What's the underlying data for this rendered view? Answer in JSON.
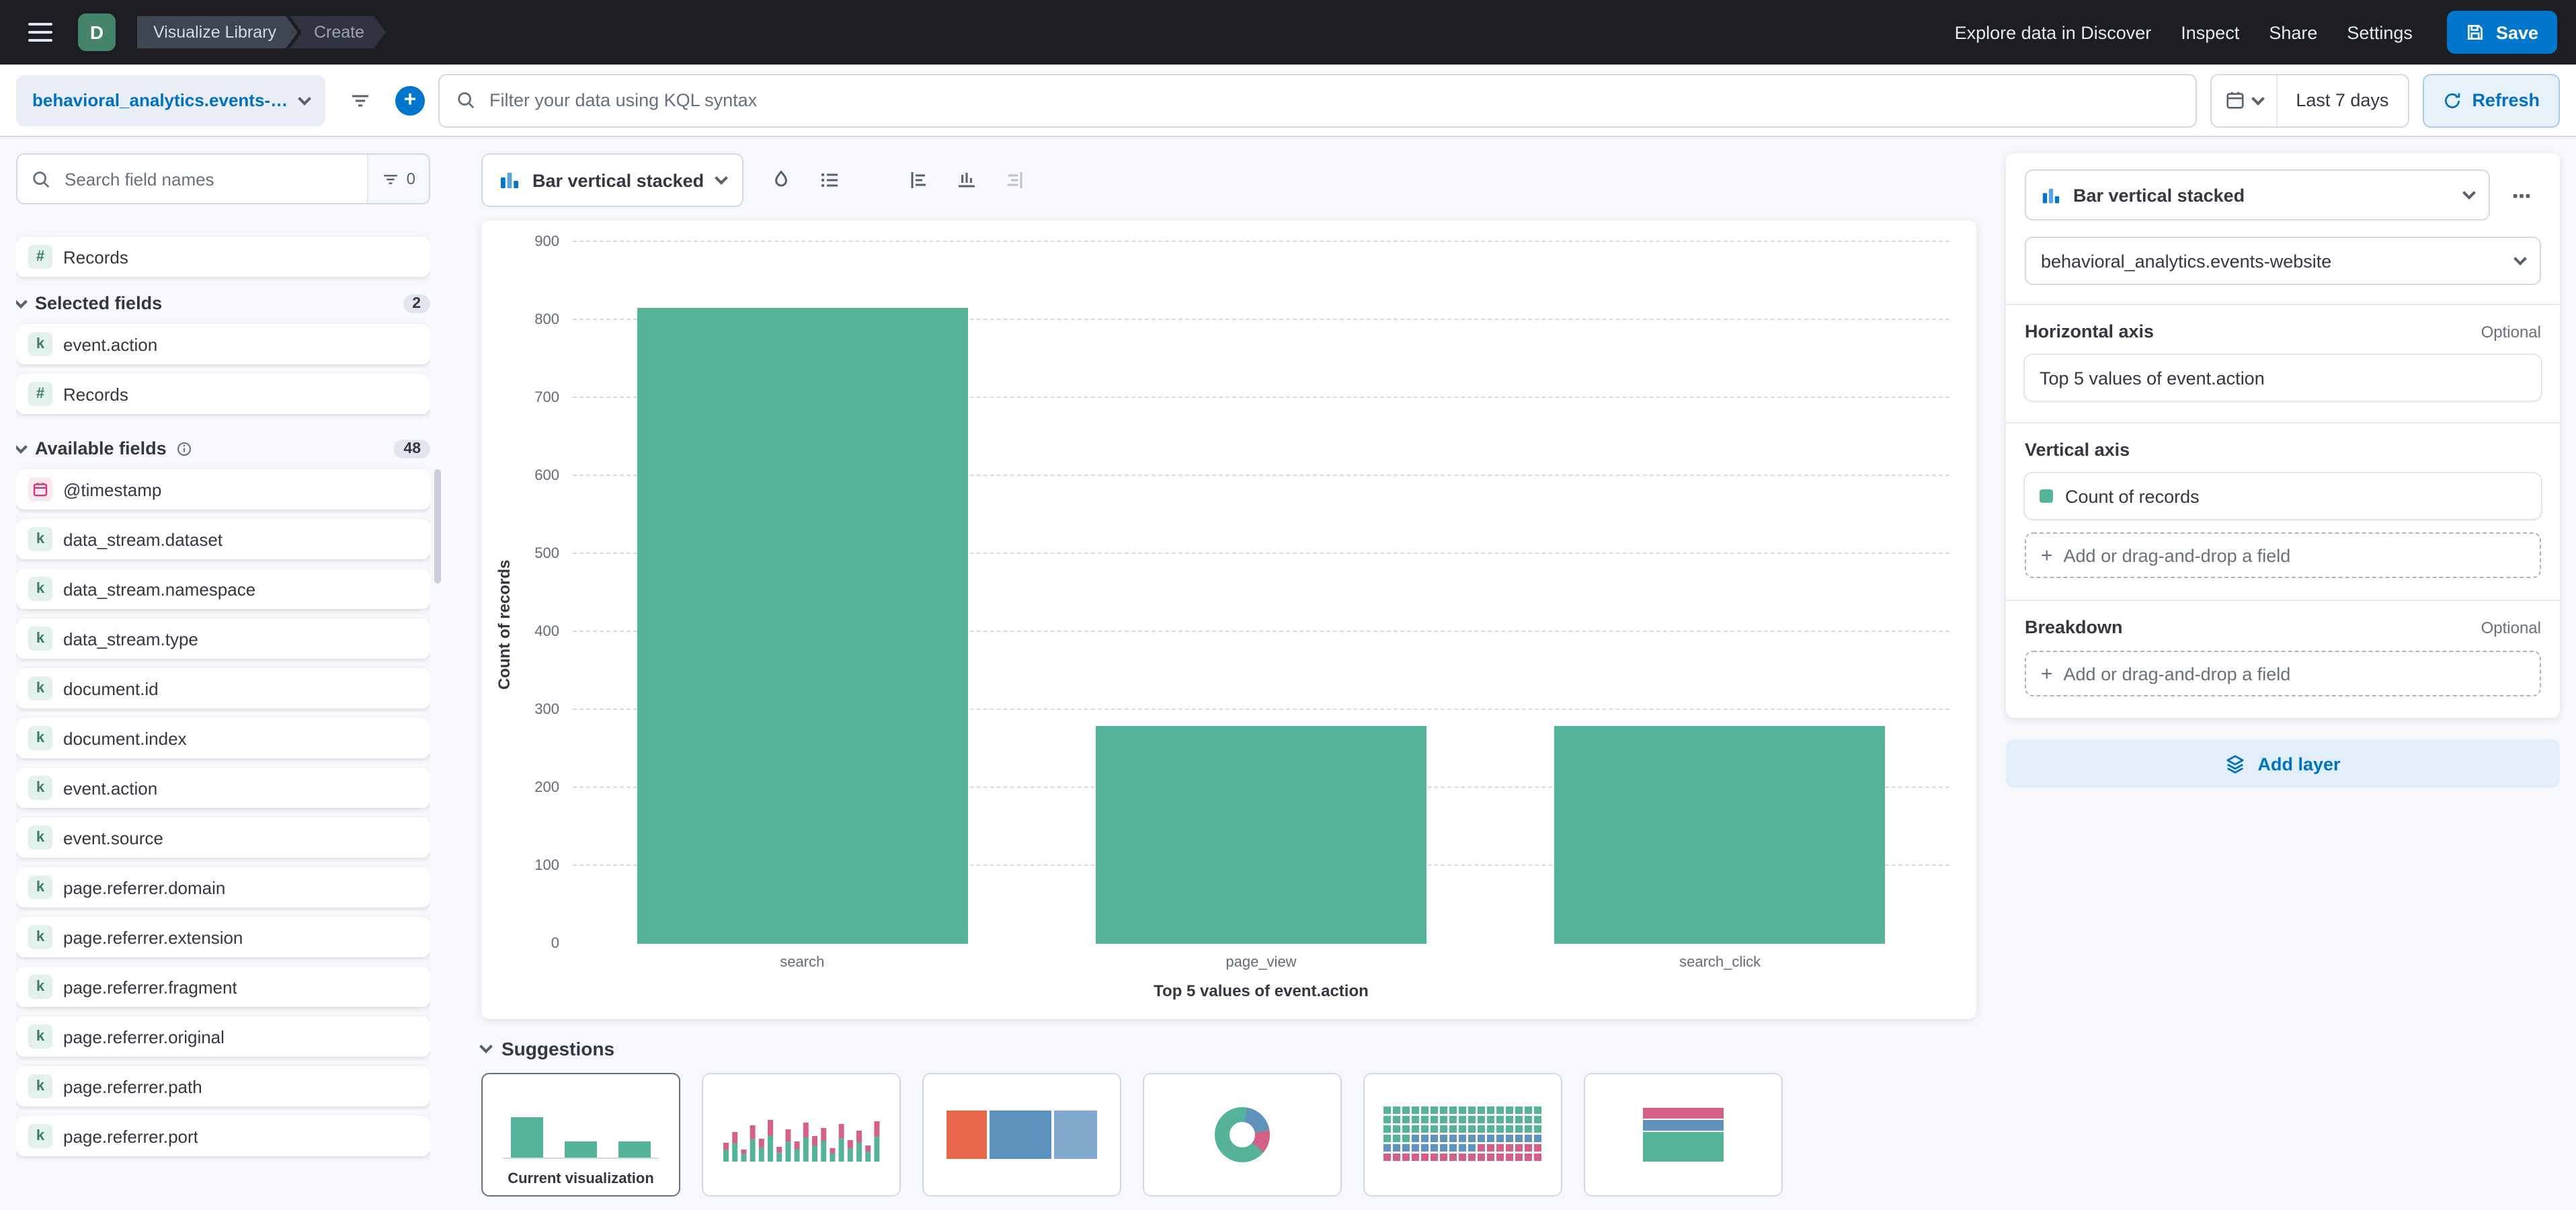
{
  "header": {
    "space_initial": "D",
    "breadcrumbs": [
      "Visualize Library",
      "Create"
    ],
    "nav": [
      "Explore data in Discover",
      "Inspect",
      "Share",
      "Settings"
    ],
    "save_label": "Save"
  },
  "query_bar": {
    "data_view": "behavioral_analytics.events-web...",
    "kql_placeholder": "Filter your data using KQL syntax",
    "time_range": "Last 7 days",
    "refresh_label": "Refresh"
  },
  "sidebar": {
    "search_placeholder": "Search field names",
    "filter_count": "0",
    "records_field": "Records",
    "selected": {
      "label": "Selected fields",
      "count": "2",
      "items": [
        {
          "type": "keyword",
          "name": "event.action"
        },
        {
          "type": "number",
          "name": "Records"
        }
      ]
    },
    "available": {
      "label": "Available fields",
      "count": "48",
      "items": [
        {
          "type": "date",
          "name": "@timestamp"
        },
        {
          "type": "keyword",
          "name": "data_stream.dataset"
        },
        {
          "type": "keyword",
          "name": "data_stream.namespace"
        },
        {
          "type": "keyword",
          "name": "data_stream.type"
        },
        {
          "type": "keyword",
          "name": "document.id"
        },
        {
          "type": "keyword",
          "name": "document.index"
        },
        {
          "type": "keyword",
          "name": "event.action"
        },
        {
          "type": "keyword",
          "name": "event.source"
        },
        {
          "type": "keyword",
          "name": "page.referrer.domain"
        },
        {
          "type": "keyword",
          "name": "page.referrer.extension"
        },
        {
          "type": "keyword",
          "name": "page.referrer.fragment"
        },
        {
          "type": "keyword",
          "name": "page.referrer.original"
        },
        {
          "type": "keyword",
          "name": "page.referrer.path"
        },
        {
          "type": "keyword",
          "name": "page.referrer.port"
        }
      ]
    }
  },
  "toolbar": {
    "chart_type": "Bar vertical stacked"
  },
  "chart_data": {
    "type": "bar",
    "title": "",
    "categories": [
      "search",
      "page_view",
      "search_click"
    ],
    "values": [
      815,
      280,
      280
    ],
    "series_color": "#54B399",
    "xlabel": "Top 5 values of event.action",
    "ylabel": "Count of records",
    "ylim": [
      0,
      900
    ],
    "ytick_step": 100,
    "grid": "horizontal-dashed",
    "legend": "hidden"
  },
  "suggestions": {
    "label": "Suggestions",
    "current_label": "Current visualization"
  },
  "config": {
    "chart_type": "Bar vertical stacked",
    "data_view": "behavioral_analytics.events-website",
    "sections": {
      "horizontal": {
        "label": "Horizontal axis",
        "optional": "Optional",
        "value": "Top 5 values of event.action"
      },
      "vertical": {
        "label": "Vertical axis",
        "value": "Count of records",
        "add_label": "Add or drag-and-drop a field"
      },
      "breakdown": {
        "label": "Breakdown",
        "optional": "Optional",
        "add_label": "Add or drag-and-drop a field"
      }
    },
    "add_layer": "Add layer"
  }
}
